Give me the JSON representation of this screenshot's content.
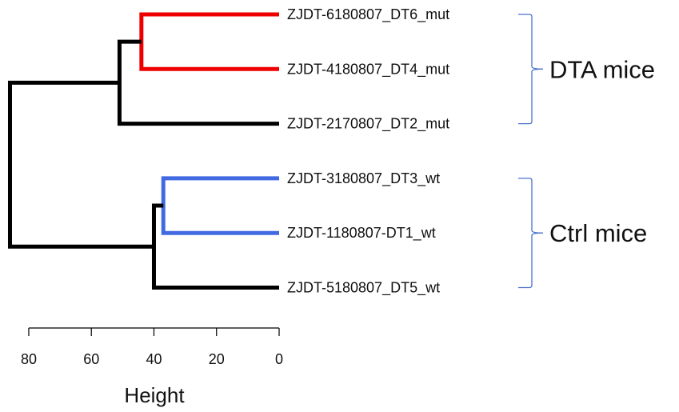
{
  "chart_data": {
    "type": "dendrogram",
    "orientation": "horizontal",
    "xlabel": "Height",
    "xlim": [
      84,
      0
    ],
    "x_ticks": [
      80,
      60,
      40,
      20,
      0
    ],
    "leaves": [
      {
        "label": "ZJDT-6180807_DT6_mut",
        "group": "DTA mice"
      },
      {
        "label": "ZJDT-4180807_DT4_mut",
        "group": "DTA mice"
      },
      {
        "label": "ZJDT-2170807_DT2_mut",
        "group": "DTA mice"
      },
      {
        "label": "ZJDT-3180807_DT3_wt",
        "group": "Ctrl mice"
      },
      {
        "label": "ZJDT-1180807-DT1_wt",
        "group": "Ctrl mice"
      },
      {
        "label": "ZJDT-5180807_DT5_wt",
        "group": "Ctrl mice"
      }
    ],
    "merges": [
      {
        "left": 0,
        "right": 1,
        "height": 44,
        "color": "#ee0000"
      },
      {
        "left": "m0",
        "right": 2,
        "height": 51,
        "color": "#000000"
      },
      {
        "left": 3,
        "right": 4,
        "height": 37,
        "color": "#4169e1"
      },
      {
        "left": "m2",
        "right": 5,
        "height": 40,
        "color": "#000000"
      },
      {
        "left": "m1",
        "right": "m3",
        "height": 86,
        "color": "#000000"
      }
    ],
    "subtree_colors": {
      "DTA mice": "#ee0000",
      "Ctrl mice": "#4169e1"
    },
    "groups": [
      {
        "label": "DTA mice",
        "leaf_indices": [
          0,
          1,
          2
        ],
        "bracket_color": "#4a72c9"
      },
      {
        "label": "Ctrl mice",
        "leaf_indices": [
          3,
          4,
          5
        ],
        "bracket_color": "#4a72c9"
      }
    ]
  },
  "colors": {
    "top_link": "#000000",
    "axis": "#000000"
  }
}
